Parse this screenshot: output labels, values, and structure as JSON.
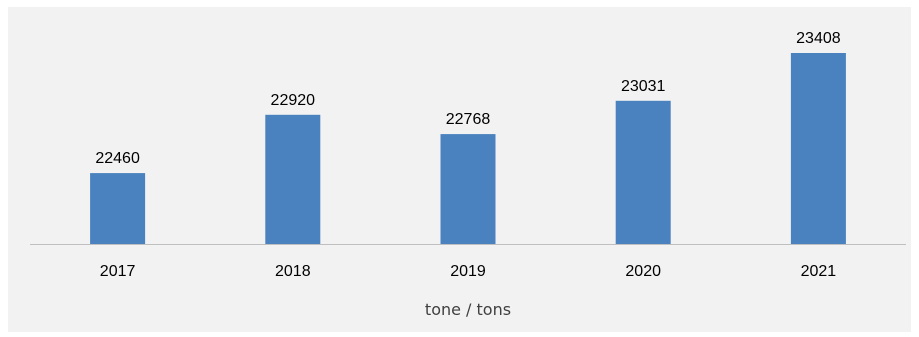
{
  "chart_data": {
    "type": "bar",
    "categories": [
      "2017",
      "2018",
      "2019",
      "2020",
      "2021"
    ],
    "values": [
      22460,
      22920,
      22768,
      23031,
      23408
    ],
    "data_labels": [
      "22460",
      "22920",
      "22768",
      "23031",
      "23408"
    ],
    "title": "",
    "xlabel": "tone / tons",
    "ylabel": "",
    "ylim": [
      21900,
      23408
    ],
    "grid": false,
    "legend": "none",
    "colors": {
      "bar": "#4a81bf",
      "axis": "#bfbfbf",
      "background": "#f2f2f2"
    }
  }
}
